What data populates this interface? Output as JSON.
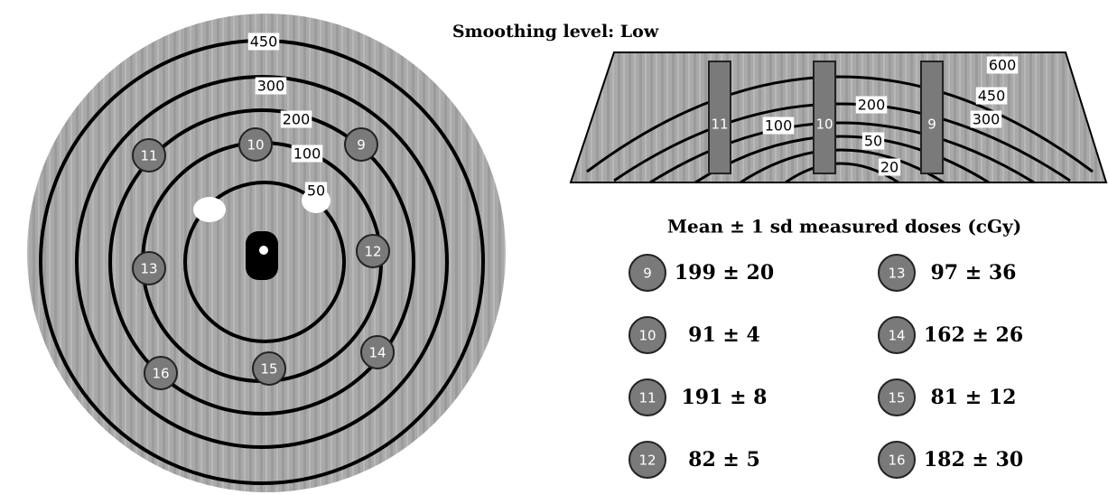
{
  "title": "Smoothing level: Low",
  "axial_view": {
    "contour_labels": [
      "450",
      "300",
      "200",
      "100",
      "50"
    ],
    "detectors": [
      "9",
      "10",
      "11",
      "12",
      "13",
      "14",
      "15",
      "16"
    ]
  },
  "coronal_view": {
    "detectors": [
      "11",
      "10",
      "9"
    ],
    "contour_labels": [
      "600",
      "450",
      "300",
      "200",
      "100",
      "50",
      "20"
    ]
  },
  "table": {
    "heading": "Mean ± 1 sd measured doses (cGy)",
    "rows": [
      {
        "detector": "9",
        "dose": "199 ± 20"
      },
      {
        "detector": "10",
        "dose": "91 ± 4"
      },
      {
        "detector": "11",
        "dose": "191 ± 8"
      },
      {
        "detector": "12",
        "dose": "82 ± 5"
      },
      {
        "detector": "13",
        "dose": "97 ± 36"
      },
      {
        "detector": "14",
        "dose": "162 ± 26"
      },
      {
        "detector": "15",
        "dose": "81 ± 12"
      },
      {
        "detector": "16",
        "dose": "182 ± 30"
      }
    ]
  }
}
